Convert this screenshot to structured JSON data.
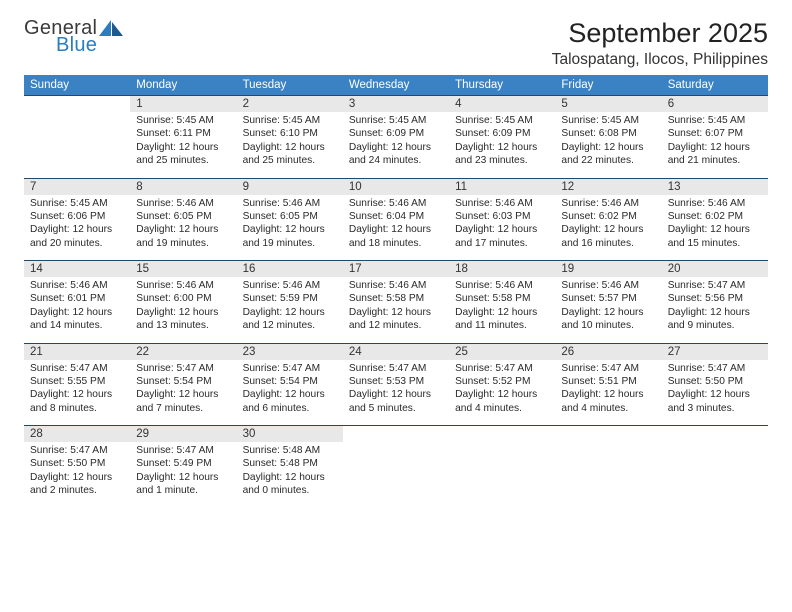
{
  "logo": {
    "top": "General",
    "bottom": "Blue"
  },
  "header": {
    "month_title": "September 2025",
    "location": "Talospatang, Ilocos, Philippines"
  },
  "weekday_labels": [
    "Sunday",
    "Monday",
    "Tuesday",
    "Wednesday",
    "Thursday",
    "Friday",
    "Saturday"
  ],
  "colors": {
    "header_blue": "#3b82c4",
    "cell_gray": "#e8e8e8",
    "border": "#1e4a6b",
    "logo_blue": "#2b7cc0",
    "text": "#2a2a2a"
  },
  "fonts": {
    "month_title_pt": 27,
    "location_pt": 15.5,
    "weekday_pt": 11.5,
    "daynum_pt": 11.5,
    "body_pt": 10.2
  },
  "weeks": [
    {
      "days": [
        {
          "empty": true
        },
        {
          "num": "1",
          "sunrise": "Sunrise: 5:45 AM",
          "sunset": "Sunset: 6:11 PM",
          "d1": "Daylight: 12 hours",
          "d2": "and 25 minutes."
        },
        {
          "num": "2",
          "sunrise": "Sunrise: 5:45 AM",
          "sunset": "Sunset: 6:10 PM",
          "d1": "Daylight: 12 hours",
          "d2": "and 25 minutes."
        },
        {
          "num": "3",
          "sunrise": "Sunrise: 5:45 AM",
          "sunset": "Sunset: 6:09 PM",
          "d1": "Daylight: 12 hours",
          "d2": "and 24 minutes."
        },
        {
          "num": "4",
          "sunrise": "Sunrise: 5:45 AM",
          "sunset": "Sunset: 6:09 PM",
          "d1": "Daylight: 12 hours",
          "d2": "and 23 minutes."
        },
        {
          "num": "5",
          "sunrise": "Sunrise: 5:45 AM",
          "sunset": "Sunset: 6:08 PM",
          "d1": "Daylight: 12 hours",
          "d2": "and 22 minutes."
        },
        {
          "num": "6",
          "sunrise": "Sunrise: 5:45 AM",
          "sunset": "Sunset: 6:07 PM",
          "d1": "Daylight: 12 hours",
          "d2": "and 21 minutes."
        }
      ]
    },
    {
      "days": [
        {
          "num": "7",
          "sunrise": "Sunrise: 5:45 AM",
          "sunset": "Sunset: 6:06 PM",
          "d1": "Daylight: 12 hours",
          "d2": "and 20 minutes."
        },
        {
          "num": "8",
          "sunrise": "Sunrise: 5:46 AM",
          "sunset": "Sunset: 6:05 PM",
          "d1": "Daylight: 12 hours",
          "d2": "and 19 minutes."
        },
        {
          "num": "9",
          "sunrise": "Sunrise: 5:46 AM",
          "sunset": "Sunset: 6:05 PM",
          "d1": "Daylight: 12 hours",
          "d2": "and 19 minutes."
        },
        {
          "num": "10",
          "sunrise": "Sunrise: 5:46 AM",
          "sunset": "Sunset: 6:04 PM",
          "d1": "Daylight: 12 hours",
          "d2": "and 18 minutes."
        },
        {
          "num": "11",
          "sunrise": "Sunrise: 5:46 AM",
          "sunset": "Sunset: 6:03 PM",
          "d1": "Daylight: 12 hours",
          "d2": "and 17 minutes."
        },
        {
          "num": "12",
          "sunrise": "Sunrise: 5:46 AM",
          "sunset": "Sunset: 6:02 PM",
          "d1": "Daylight: 12 hours",
          "d2": "and 16 minutes."
        },
        {
          "num": "13",
          "sunrise": "Sunrise: 5:46 AM",
          "sunset": "Sunset: 6:02 PM",
          "d1": "Daylight: 12 hours",
          "d2": "and 15 minutes."
        }
      ]
    },
    {
      "days": [
        {
          "num": "14",
          "sunrise": "Sunrise: 5:46 AM",
          "sunset": "Sunset: 6:01 PM",
          "d1": "Daylight: 12 hours",
          "d2": "and 14 minutes."
        },
        {
          "num": "15",
          "sunrise": "Sunrise: 5:46 AM",
          "sunset": "Sunset: 6:00 PM",
          "d1": "Daylight: 12 hours",
          "d2": "and 13 minutes."
        },
        {
          "num": "16",
          "sunrise": "Sunrise: 5:46 AM",
          "sunset": "Sunset: 5:59 PM",
          "d1": "Daylight: 12 hours",
          "d2": "and 12 minutes."
        },
        {
          "num": "17",
          "sunrise": "Sunrise: 5:46 AM",
          "sunset": "Sunset: 5:58 PM",
          "d1": "Daylight: 12 hours",
          "d2": "and 12 minutes."
        },
        {
          "num": "18",
          "sunrise": "Sunrise: 5:46 AM",
          "sunset": "Sunset: 5:58 PM",
          "d1": "Daylight: 12 hours",
          "d2": "and 11 minutes."
        },
        {
          "num": "19",
          "sunrise": "Sunrise: 5:46 AM",
          "sunset": "Sunset: 5:57 PM",
          "d1": "Daylight: 12 hours",
          "d2": "and 10 minutes."
        },
        {
          "num": "20",
          "sunrise": "Sunrise: 5:47 AM",
          "sunset": "Sunset: 5:56 PM",
          "d1": "Daylight: 12 hours",
          "d2": "and 9 minutes."
        }
      ]
    },
    {
      "days": [
        {
          "num": "21",
          "sunrise": "Sunrise: 5:47 AM",
          "sunset": "Sunset: 5:55 PM",
          "d1": "Daylight: 12 hours",
          "d2": "and 8 minutes."
        },
        {
          "num": "22",
          "sunrise": "Sunrise: 5:47 AM",
          "sunset": "Sunset: 5:54 PM",
          "d1": "Daylight: 12 hours",
          "d2": "and 7 minutes."
        },
        {
          "num": "23",
          "sunrise": "Sunrise: 5:47 AM",
          "sunset": "Sunset: 5:54 PM",
          "d1": "Daylight: 12 hours",
          "d2": "and 6 minutes."
        },
        {
          "num": "24",
          "sunrise": "Sunrise: 5:47 AM",
          "sunset": "Sunset: 5:53 PM",
          "d1": "Daylight: 12 hours",
          "d2": "and 5 minutes."
        },
        {
          "num": "25",
          "sunrise": "Sunrise: 5:47 AM",
          "sunset": "Sunset: 5:52 PM",
          "d1": "Daylight: 12 hours",
          "d2": "and 4 minutes."
        },
        {
          "num": "26",
          "sunrise": "Sunrise: 5:47 AM",
          "sunset": "Sunset: 5:51 PM",
          "d1": "Daylight: 12 hours",
          "d2": "and 4 minutes."
        },
        {
          "num": "27",
          "sunrise": "Sunrise: 5:47 AM",
          "sunset": "Sunset: 5:50 PM",
          "d1": "Daylight: 12 hours",
          "d2": "and 3 minutes."
        }
      ]
    },
    {
      "days": [
        {
          "num": "28",
          "sunrise": "Sunrise: 5:47 AM",
          "sunset": "Sunset: 5:50 PM",
          "d1": "Daylight: 12 hours",
          "d2": "and 2 minutes."
        },
        {
          "num": "29",
          "sunrise": "Sunrise: 5:47 AM",
          "sunset": "Sunset: 5:49 PM",
          "d1": "Daylight: 12 hours",
          "d2": "and 1 minute."
        },
        {
          "num": "30",
          "sunrise": "Sunrise: 5:48 AM",
          "sunset": "Sunset: 5:48 PM",
          "d1": "Daylight: 12 hours",
          "d2": "and 0 minutes."
        },
        {
          "empty": true
        },
        {
          "empty": true
        },
        {
          "empty": true
        },
        {
          "empty": true
        }
      ]
    }
  ]
}
